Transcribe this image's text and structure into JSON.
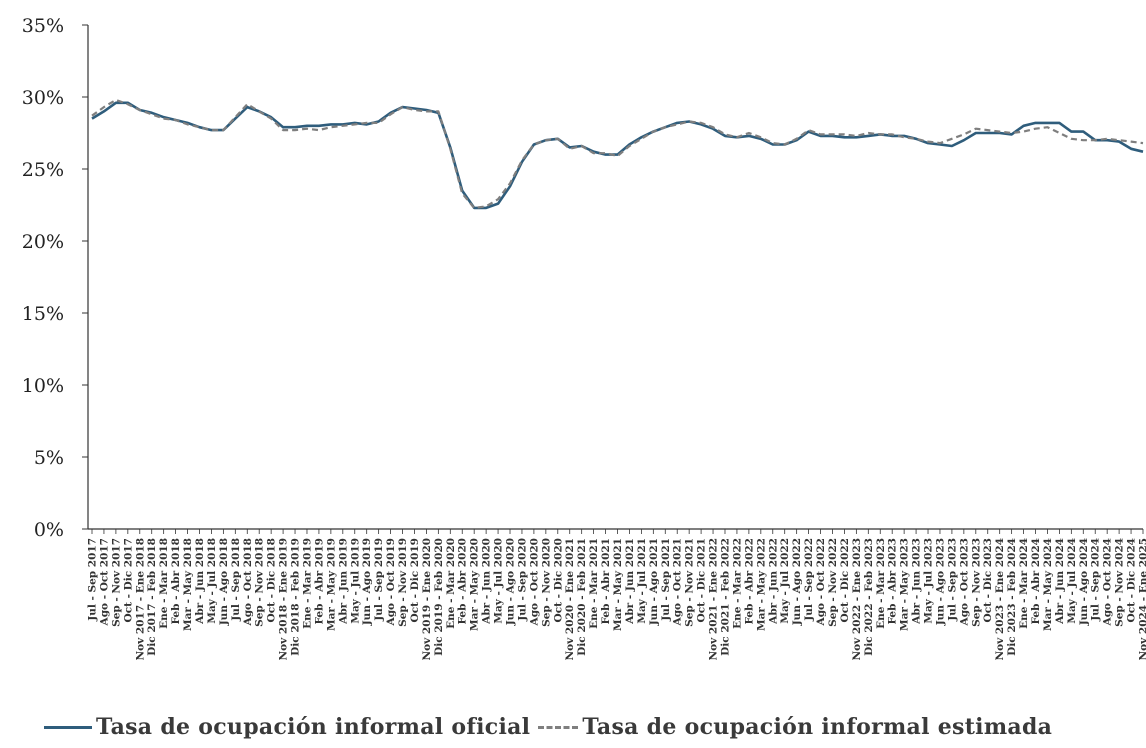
{
  "chart_data": {
    "type": "line",
    "title": "",
    "xlabel": "",
    "ylabel": "",
    "ylim": [
      0,
      35
    ],
    "yticks": [
      "0%",
      "5%",
      "10%",
      "15%",
      "20%",
      "25%",
      "30%",
      "35%"
    ],
    "grid": false,
    "legend_position": "bottom",
    "categories": [
      "Jul - Sep 2017",
      "Ago - Oct 2017",
      "Sep - Nov 2017",
      "Oct - Dic 2017",
      "Nov 2017 - Ene 2018",
      "Dic 2017 - Feb 2018",
      "Ene - Mar 2018",
      "Feb - Abr 2018",
      "Mar - May 2018",
      "Abr - Jun 2018",
      "May - Jul 2018",
      "Jun - Ago 2018",
      "Jul - Sep 2018",
      "Ago - Oct 2018",
      "Sep - Nov 2018",
      "Oct - Dic 2018",
      "Nov 2018 - Ene 2019",
      "Dic 2018 - Feb 2019",
      "Ene - Mar 2019",
      "Feb - Abr 2019",
      "Mar - May 2019",
      "Abr - Jun 2019",
      "May - Jul 2019",
      "Jun - Ago 2019",
      "Jul - Sep 2019",
      "Ago - Oct 2019",
      "Sep - Nov 2019",
      "Oct - Dic 2019",
      "Nov 2019 - Ene 2020",
      "Dic 2019 - Feb 2020",
      "Ene - Mar 2020",
      "Feb - Abr 2020",
      "Mar - May 2020",
      "Abr - Jun 2020",
      "May - Jul 2020",
      "Jun - Ago 2020",
      "Jul - Sep 2020",
      "Ago - Oct 2020",
      "Sep - Nov 2020",
      "Oct - Dic 2020",
      "Nov 2020 - Ene 2021",
      "Dic 2020 - Feb 2021",
      "Ene - Mar 2021",
      "Feb - Abr 2021",
      "Mar - May 2021",
      "Abr - Jun 2021",
      "May - Jul 2021",
      "Jun - Ago 2021",
      "Jul - Sep 2021",
      "Ago - Oct 2021",
      "Sep - Nov 2021",
      "Oct - Dic 2021",
      "Nov 2021 - Ene 2022",
      "Dic 2021 - Feb 2022",
      "Ene - Mar 2022",
      "Feb - Abr 2022",
      "Mar - May 2022",
      "Abr - Jun 2022",
      "May - Jul 2022",
      "Jun - Ago 2022",
      "Jul - Sep 2022",
      "Ago - Oct 2022",
      "Sep - Nov 2022",
      "Oct - Dic 2022",
      "Nov 2022 - Ene 2023",
      "Dic 2022 - Feb 2023",
      "Ene - Mar 2023",
      "Feb - Abr 2023",
      "Mar - May 2023",
      "Abr - Jun 2023",
      "May - Jul 2023",
      "Jun - Ago 2023",
      "Jul - Sep 2023",
      "Ago - Oct 2023",
      "Sep - Nov 2023",
      "Oct - Dic 2023",
      "Nov 2023 - Ene 2024",
      "Dic 2023 - Feb 2024",
      "Ene - Mar 2024",
      "Feb - Abr 2024",
      "Mar - May 2024",
      "Abr - Jun 2024",
      "May - Jul 2024",
      "Jun - Ago 2024",
      "Jul - Sep 2024",
      "Ago - Oct 2024",
      "Sep - Nov 2024",
      "Oct - Dic 2024",
      "Nov 2024 - Ene 2025"
    ],
    "series": [
      {
        "name": "Tasa de ocupación informal oficial",
        "style": "solid",
        "color": "#2f5d7c",
        "values": [
          28.5,
          29.0,
          29.6,
          29.6,
          29.1,
          28.9,
          28.6,
          28.4,
          28.2,
          27.9,
          27.7,
          27.7,
          28.5,
          29.3,
          29.0,
          28.6,
          27.9,
          27.9,
          28.0,
          28.0,
          28.1,
          28.1,
          28.2,
          28.1,
          28.3,
          28.9,
          29.3,
          29.2,
          29.1,
          28.9,
          26.5,
          23.5,
          22.3,
          22.3,
          22.6,
          23.8,
          25.5,
          26.7,
          27.0,
          27.1,
          26.5,
          26.6,
          26.2,
          26.0,
          26.0,
          26.7,
          27.2,
          27.6,
          27.9,
          28.2,
          28.3,
          28.1,
          27.8,
          27.3,
          27.2,
          27.3,
          27.1,
          26.7,
          26.7,
          27.0,
          27.6,
          27.3,
          27.3,
          27.2,
          27.2,
          27.3,
          27.4,
          27.3,
          27.3,
          27.1,
          26.8,
          26.7,
          26.6,
          27.0,
          27.5,
          27.5,
          27.5,
          27.4,
          28.0,
          28.2,
          28.2,
          28.2,
          27.6,
          27.6,
          27.0,
          27.0,
          26.9,
          26.4,
          26.2
        ]
      },
      {
        "name": "Tasa de ocupación informal estimada",
        "style": "dashed",
        "color": "#7f7f7f",
        "values": [
          28.7,
          29.3,
          29.8,
          29.5,
          29.1,
          28.8,
          28.5,
          28.4,
          28.1,
          27.9,
          27.7,
          27.7,
          28.6,
          29.5,
          29.0,
          28.5,
          27.7,
          27.7,
          27.8,
          27.7,
          27.9,
          28.0,
          28.1,
          28.2,
          28.2,
          28.8,
          29.3,
          29.1,
          29.0,
          29.0,
          26.4,
          23.3,
          22.3,
          22.4,
          22.9,
          24.0,
          25.6,
          26.7,
          27.0,
          27.1,
          26.4,
          26.6,
          26.1,
          26.1,
          25.9,
          26.6,
          27.1,
          27.6,
          27.9,
          28.1,
          28.3,
          28.2,
          27.9,
          27.4,
          27.2,
          27.5,
          27.2,
          26.8,
          26.7,
          27.1,
          27.7,
          27.4,
          27.4,
          27.4,
          27.3,
          27.5,
          27.4,
          27.4,
          27.2,
          27.1,
          26.9,
          26.8,
          27.1,
          27.4,
          27.8,
          27.7,
          27.6,
          27.5,
          27.6,
          27.8,
          27.9,
          27.5,
          27.1,
          27.0,
          27.0,
          27.1,
          27.0,
          26.9,
          26.8
        ]
      }
    ]
  }
}
